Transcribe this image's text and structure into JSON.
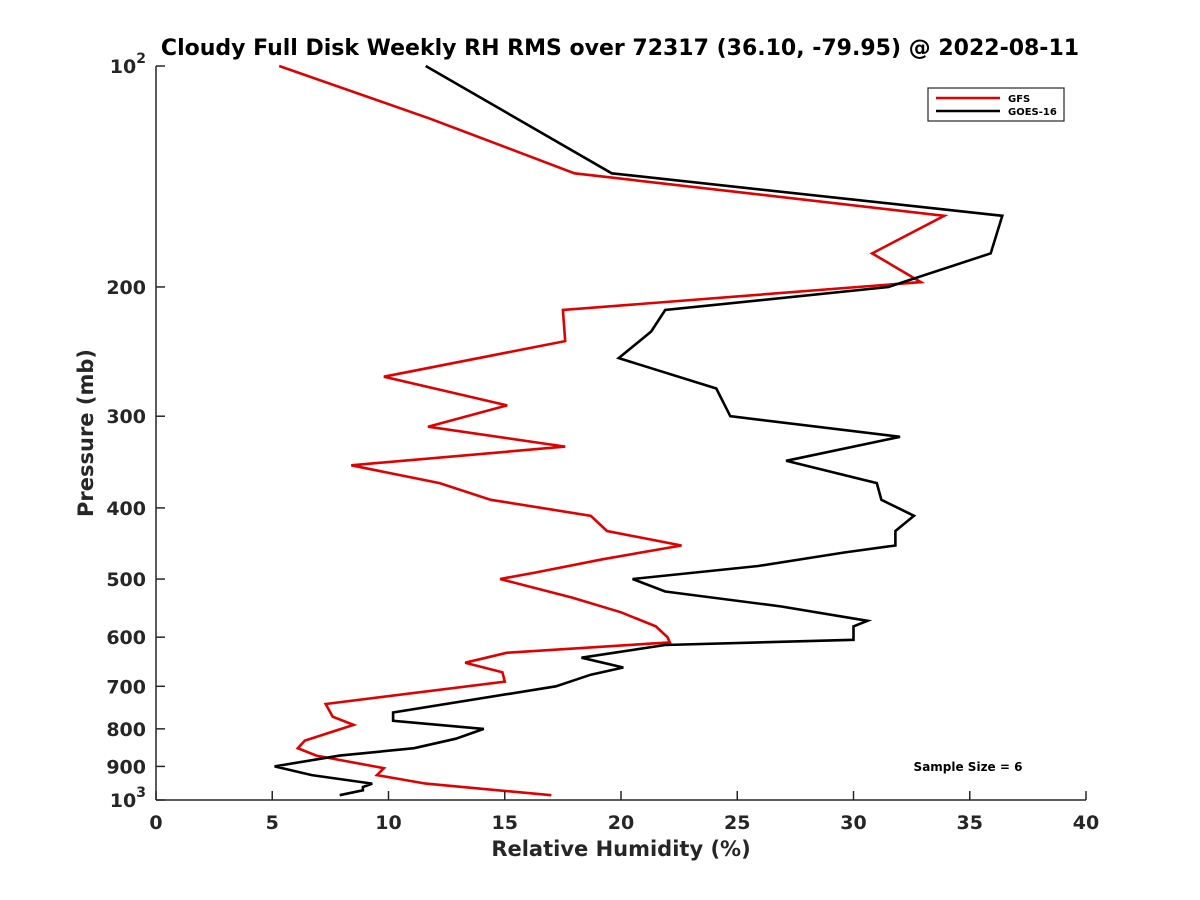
{
  "chart_data": {
    "type": "line",
    "title": "Cloudy Full Disk Weekly RH RMS over 72317 (36.10, -79.95) @ 2022-08-11",
    "xlabel": "Relative Humidity (%)",
    "ylabel": "Pressure (mb)",
    "xlim": [
      0,
      40
    ],
    "ylim": [
      100,
      1000
    ],
    "y_scale": "log",
    "y_reversed": true,
    "x_ticks": [
      "0",
      "5",
      "10",
      "15",
      "20",
      "25",
      "30",
      "35",
      "40"
    ],
    "y_ticks": [
      {
        "value": 100,
        "base": "10",
        "exp": "2"
      },
      {
        "value": 200,
        "label": "200"
      },
      {
        "value": 300,
        "label": "300"
      },
      {
        "value": 400,
        "label": "400"
      },
      {
        "value": 500,
        "label": "500"
      },
      {
        "value": 600,
        "label": "600"
      },
      {
        "value": 700,
        "label": "700"
      },
      {
        "value": 800,
        "label": "800"
      },
      {
        "value": 900,
        "label": "900"
      },
      {
        "value": 1000,
        "base": "10",
        "exp": "3"
      }
    ],
    "grid": false,
    "legend_position": "top-right",
    "series": [
      {
        "name": "GFS",
        "color": "#e00000",
        "points": [
          [
            5.3,
            100
          ],
          [
            11.8,
            118
          ],
          [
            18.0,
            140
          ],
          [
            33.9,
            160
          ],
          [
            30.8,
            180
          ],
          [
            32.9,
            197
          ],
          [
            17.5,
            215
          ],
          [
            17.6,
            237
          ],
          [
            9.8,
            265
          ],
          [
            15.1,
            290
          ],
          [
            11.7,
            310
          ],
          [
            17.6,
            330
          ],
          [
            8.4,
            350
          ],
          [
            12.2,
            370
          ],
          [
            14.4,
            390
          ],
          [
            18.7,
            410
          ],
          [
            19.4,
            430
          ],
          [
            22.6,
            450
          ],
          [
            19.2,
            470
          ],
          [
            16.3,
            490
          ],
          [
            14.8,
            500
          ],
          [
            17.9,
            530
          ],
          [
            20.0,
            555
          ],
          [
            21.5,
            580
          ],
          [
            22.0,
            600
          ],
          [
            22.1,
            610
          ],
          [
            15.1,
            630
          ],
          [
            13.3,
            650
          ],
          [
            14.9,
            670
          ],
          [
            15.0,
            690
          ],
          [
            7.3,
            740
          ],
          [
            7.6,
            770
          ],
          [
            8.5,
            790
          ],
          [
            7.7,
            805
          ],
          [
            6.4,
            830
          ],
          [
            6.1,
            850
          ],
          [
            6.9,
            870
          ],
          [
            9.8,
            905
          ],
          [
            9.5,
            925
          ],
          [
            11.6,
            950
          ],
          [
            17.0,
            985
          ]
        ]
      },
      {
        "name": "GOES-16",
        "color": "#000000",
        "points": [
          [
            11.6,
            100
          ],
          [
            19.6,
            140
          ],
          [
            36.4,
            160
          ],
          [
            35.9,
            180
          ],
          [
            31.5,
            200
          ],
          [
            21.9,
            215
          ],
          [
            21.3,
            230
          ],
          [
            19.9,
            250
          ],
          [
            24.1,
            275
          ],
          [
            24.7,
            300
          ],
          [
            32.0,
            320
          ],
          [
            27.1,
            345
          ],
          [
            31.0,
            370
          ],
          [
            31.2,
            390
          ],
          [
            32.6,
            410
          ],
          [
            31.8,
            430
          ],
          [
            31.8,
            450
          ],
          [
            29.6,
            460
          ],
          [
            25.9,
            480
          ],
          [
            20.5,
            500
          ],
          [
            21.9,
            520
          ],
          [
            26.9,
            545
          ],
          [
            30.6,
            570
          ],
          [
            30.0,
            580
          ],
          [
            30.0,
            605
          ],
          [
            21.9,
            615
          ],
          [
            18.3,
            640
          ],
          [
            20.1,
            660
          ],
          [
            18.7,
            675
          ],
          [
            17.2,
            700
          ],
          [
            10.2,
            760
          ],
          [
            10.2,
            780
          ],
          [
            14.1,
            800
          ],
          [
            12.9,
            825
          ],
          [
            11.1,
            850
          ],
          [
            7.9,
            870
          ],
          [
            5.1,
            900
          ],
          [
            6.7,
            925
          ],
          [
            9.3,
            950
          ],
          [
            8.9,
            960
          ],
          [
            8.9,
            970
          ],
          [
            7.9,
            985
          ]
        ]
      }
    ],
    "annotation": "Sample Size = 6"
  }
}
